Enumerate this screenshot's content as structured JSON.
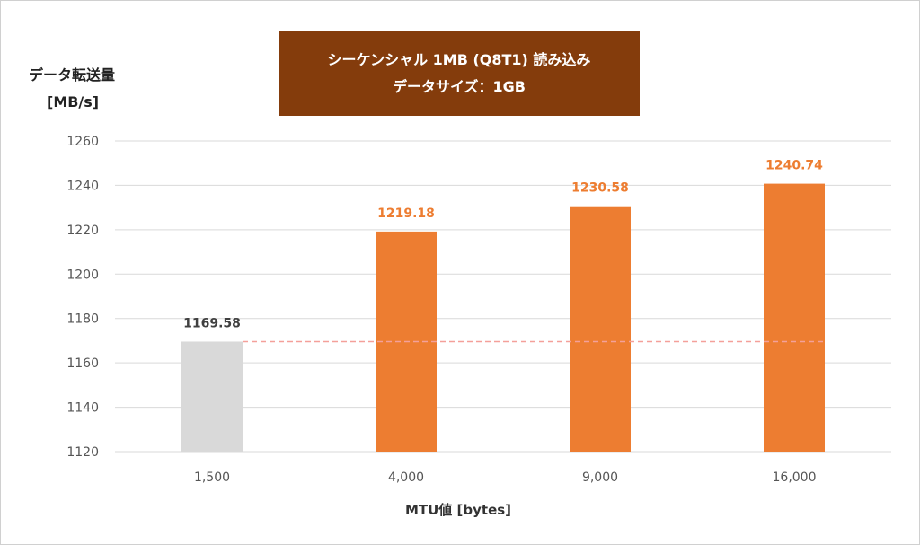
{
  "chart_data": {
    "type": "bar",
    "title": "シーケンシャル 1MB (Q8T1) 読み込み",
    "subtitle": "データサイズ：1GB",
    "ylabel": "データ転送量",
    "ylabel_unit": "[MB/s]",
    "xlabel": "MTU値 [bytes]",
    "categories": [
      "1,500",
      "4,000",
      "9,000",
      "16,000"
    ],
    "values": [
      1169.58,
      1219.18,
      1230.58,
      1240.74
    ],
    "data_labels": [
      "1169.58",
      "1219.18",
      "1230.58",
      "1240.74"
    ],
    "ylim": [
      1120,
      1260
    ],
    "yticks": [
      "1120",
      "1140",
      "1160",
      "1180",
      "1200",
      "1220",
      "1240",
      "1260"
    ],
    "grid": true,
    "legend": "none",
    "reference_line": {
      "value": 1169.58,
      "style": "dashed"
    },
    "colors": {
      "baseline_bar": "#d9d9d9",
      "bar": "#ed7d31",
      "baseline_label": "#404040",
      "label": "#ed7d31",
      "reference_line": "#f4a09a",
      "grid": "#d9d9d9",
      "title_bg": "#843c0c"
    }
  }
}
